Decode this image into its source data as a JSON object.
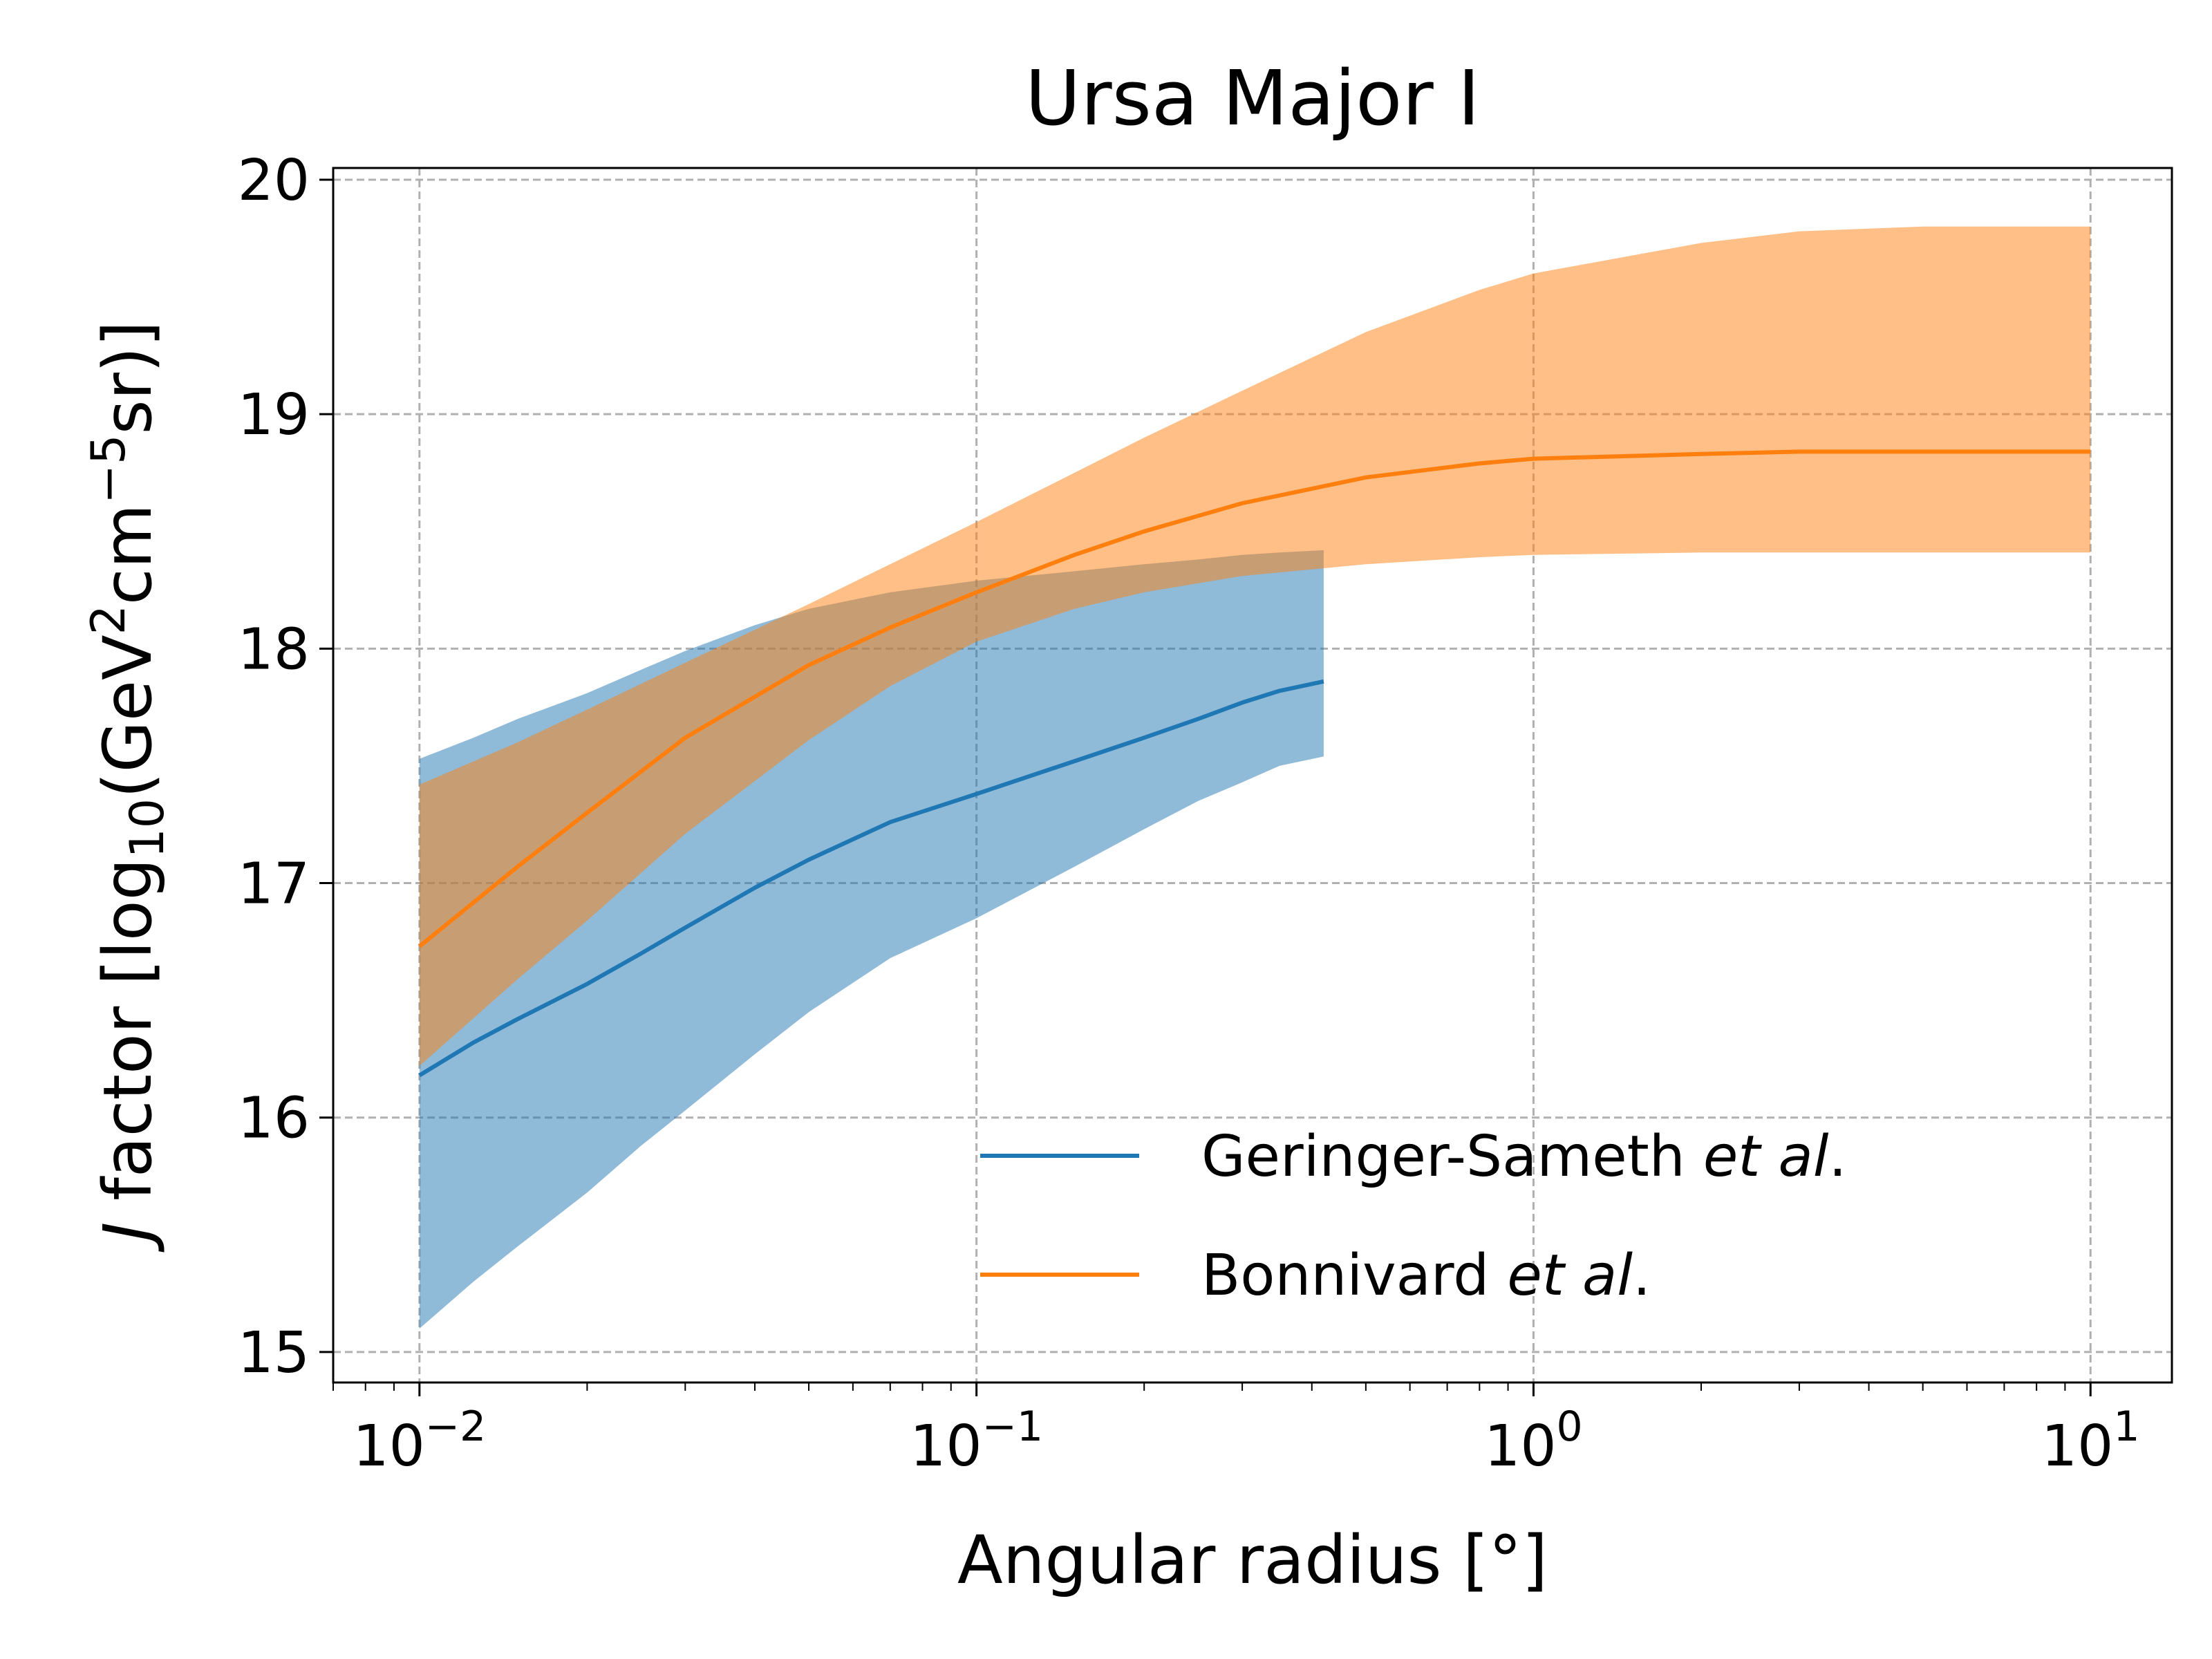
{
  "chart_data": {
    "type": "line",
    "title": "Ursa Major I",
    "xlabel": "Angular radius [°]",
    "ylabel": {
      "main": "J factor [log",
      "sub": "10",
      "mid": "(GeV",
      "sup1": "2",
      "mid2": "cm",
      "sup2": "−5",
      "end": "sr)]"
    },
    "xscale": "log",
    "xlim": [
      0.007,
      14
    ],
    "ylim": [
      14.87,
      20.05
    ],
    "grid": true,
    "legend_position": "lower-right",
    "x_ticks": [
      {
        "value": 0.01,
        "base": "10",
        "exp": "−2"
      },
      {
        "value": 0.1,
        "base": "10",
        "exp": "−1"
      },
      {
        "value": 1,
        "base": "10",
        "exp": "0"
      },
      {
        "value": 10,
        "base": "10",
        "exp": "1"
      }
    ],
    "y_ticks": [
      15,
      16,
      17,
      18,
      19,
      20
    ],
    "series": [
      {
        "name": "Geringer-Sameth et al.",
        "legend_plain": "Geringer-Sameth ",
        "legend_italic": "et al",
        "legend_end": ".",
        "color": "#1f77b4",
        "band_color": "#1f77b4",
        "band_opacity": 0.5,
        "x": [
          0.01,
          0.0125,
          0.015,
          0.02,
          0.025,
          0.03,
          0.04,
          0.05,
          0.07,
          0.1,
          0.15,
          0.2,
          0.25,
          0.3,
          0.35,
          0.42
        ],
        "y": [
          16.18,
          16.32,
          16.42,
          16.57,
          16.7,
          16.81,
          16.98,
          17.1,
          17.26,
          17.38,
          17.52,
          17.62,
          17.7,
          17.77,
          17.82,
          17.86
        ],
        "lower": [
          15.1,
          15.3,
          15.45,
          15.68,
          15.88,
          16.03,
          16.27,
          16.45,
          16.68,
          16.85,
          17.07,
          17.23,
          17.35,
          17.43,
          17.5,
          17.54
        ],
        "upper": [
          17.53,
          17.62,
          17.7,
          17.81,
          17.91,
          17.99,
          18.1,
          18.17,
          18.24,
          18.29,
          18.33,
          18.36,
          18.38,
          18.4,
          18.41,
          18.42
        ]
      },
      {
        "name": "Bonnivard et al.",
        "legend_plain": "Bonnivard ",
        "legend_italic": "et al",
        "legend_end": ".",
        "color": "#ff7f0e",
        "band_color": "#ff7f0e",
        "band_opacity": 0.5,
        "x": [
          0.01,
          0.015,
          0.02,
          0.03,
          0.05,
          0.07,
          0.1,
          0.15,
          0.2,
          0.3,
          0.5,
          0.8,
          1,
          2,
          3,
          5,
          10
        ],
        "y": [
          16.73,
          17.07,
          17.3,
          17.62,
          17.93,
          18.09,
          18.24,
          18.4,
          18.5,
          18.62,
          18.73,
          18.79,
          18.81,
          18.83,
          18.84,
          18.84,
          18.84
        ],
        "lower": [
          16.22,
          16.59,
          16.84,
          17.21,
          17.61,
          17.84,
          18.03,
          18.17,
          18.24,
          18.31,
          18.36,
          18.39,
          18.4,
          18.41,
          18.41,
          18.41,
          18.41
        ],
        "upper": [
          17.42,
          17.6,
          17.74,
          17.94,
          18.19,
          18.36,
          18.54,
          18.75,
          18.9,
          19.1,
          19.35,
          19.53,
          19.6,
          19.73,
          19.78,
          19.8,
          19.8
        ]
      }
    ]
  }
}
